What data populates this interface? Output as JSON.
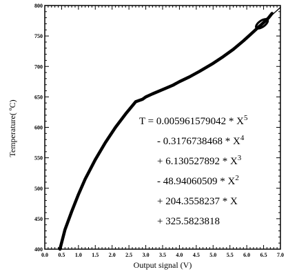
{
  "chart_data": {
    "type": "line",
    "xlabel": "Output signal (V)",
    "ylabel": "Temperature( ºC)",
    "xlim": [
      0,
      7
    ],
    "ylim": [
      400,
      800
    ],
    "x_ticks": [
      "0.0",
      "0.5",
      "1.0",
      "1.5",
      "2.0",
      "2.5",
      "3.0",
      "3.5",
      "4.0",
      "4.5",
      "5.0",
      "5.5",
      "6.0",
      "6.5",
      "7.0"
    ],
    "y_ticks": [
      "400",
      "450",
      "500",
      "550",
      "600",
      "650",
      "700",
      "750",
      "800"
    ],
    "series": [
      {
        "style": "thick-black",
        "x": [
          0.45,
          0.6,
          0.8,
          1.0,
          1.2,
          1.5,
          1.8,
          2.1,
          2.4,
          2.7,
          2.9,
          3.0,
          3.2,
          3.5,
          3.8,
          4.0,
          4.3,
          4.6,
          5.0,
          5.3,
          5.6,
          5.9,
          6.1,
          6.3,
          6.5,
          6.65,
          6.75
        ],
        "y": [
          400,
          432,
          462,
          490,
          515,
          547,
          575,
          600,
          622,
          642,
          646,
          650,
          655,
          662,
          669,
          675,
          683,
          692,
          705,
          716,
          728,
          742,
          752,
          762,
          772,
          780,
          787
        ]
      },
      {
        "style": "thin-fit",
        "x": [
          6.3,
          6.5,
          6.7,
          6.9,
          7.0
        ],
        "y": [
          765,
          773,
          782,
          792,
          797
        ]
      }
    ],
    "annotation_lines": [
      "T = 0.005961579042 * X",
      "- 0.3176738468 * X",
      "+ 6.130527892 * X",
      "- 48.94060509 * X",
      "+ 204.3558237 * X",
      "+ 325.5823818"
    ],
    "annotation_exponents": [
      "5",
      "4",
      "3",
      "2",
      "",
      ""
    ],
    "grid": false,
    "title": ""
  }
}
